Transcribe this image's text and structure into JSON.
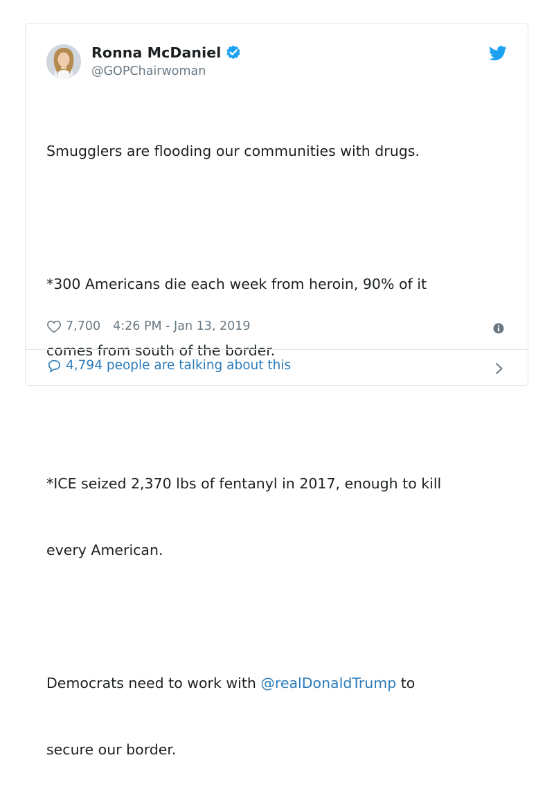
{
  "tweet": {
    "display_name": "Ronna McDaniel",
    "handle": "@GOPChairwoman",
    "lines": [
      "Smugglers are flooding our communities with drugs.",
      "*300 Americans die each week from heroin, 90% of it",
      "comes from south of the border.",
      "*ICE seized 2,370 lbs of fentanyl in 2017, enough to kill",
      "every American."
    ],
    "last_para_prefix": "Democrats need to work with ",
    "mention": "@realDonaldTrump",
    "last_para_suffix": " to",
    "last_line": "secure our border.",
    "like_count": "7,700",
    "timestamp": "4:26 PM - Jan 13, 2019",
    "talking_text": "4,794 people are talking about this"
  },
  "icons": {
    "verified": "verified-badge-icon",
    "brand": "twitter-bird-icon",
    "like": "heart-icon",
    "info": "info-icon",
    "reply": "speech-bubble-icon",
    "chevron": "chevron-right-icon"
  },
  "colors": {
    "accent": "#1da1f2",
    "link": "#2b7bb9",
    "muted": "#697882",
    "text": "#1c2022",
    "border": "#e1e8ed"
  }
}
